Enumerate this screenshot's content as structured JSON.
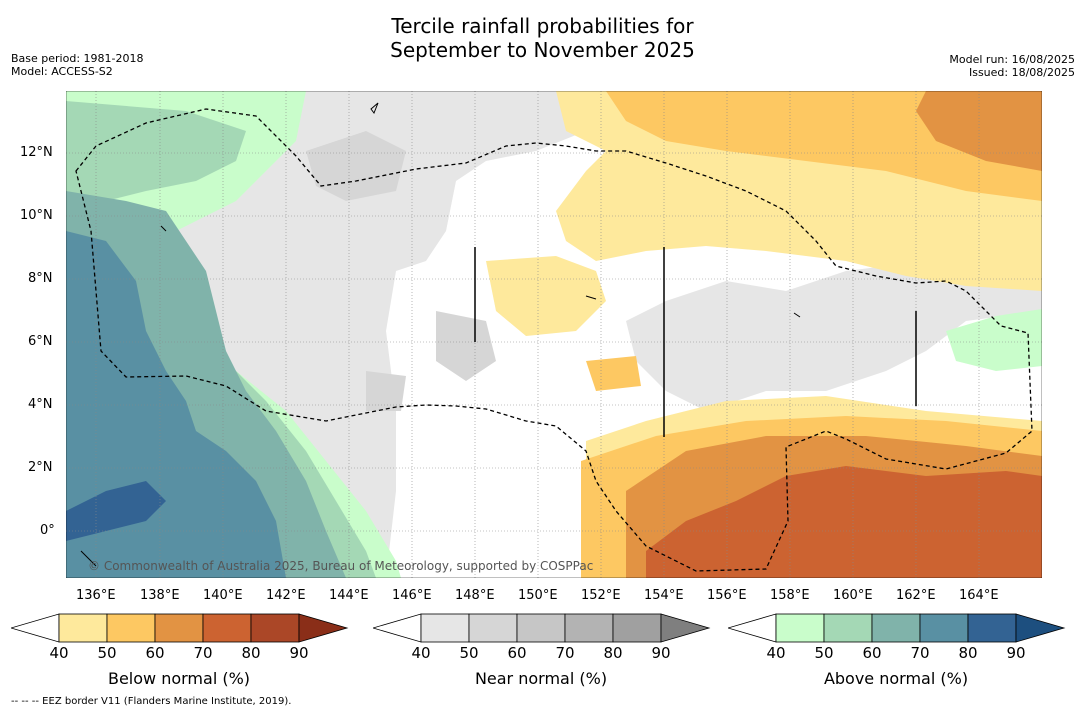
{
  "title_line1": "Tercile rainfall probabilities for",
  "title_line2": "September to November 2025",
  "base_period": "Base period: 1981-2018",
  "model": "Model: ACCESS-S2",
  "model_run": "Model run: 16/08/2025",
  "issued": "Issued: 18/08/2025",
  "credit": "© Commonwealth of Australia 2025, Bureau of Meteorology, supported by COSPPac",
  "footer": "-- -- -- EEZ border V11 (Flanders Marine Institute, 2019).",
  "lat_labels": [
    "12°N",
    "10°N",
    "8°N",
    "6°N",
    "4°N",
    "2°N",
    "0°"
  ],
  "lon_labels": [
    "136°E",
    "138°E",
    "140°E",
    "142°E",
    "144°E",
    "146°E",
    "148°E",
    "150°E",
    "152°E",
    "154°E",
    "156°E",
    "158°E",
    "160°E",
    "162°E",
    "164°E"
  ],
  "colorbars": [
    {
      "label": "Below normal (%)",
      "ticks": [
        "40",
        "50",
        "60",
        "70",
        "80",
        "90"
      ],
      "colors": [
        "#ffffff",
        "#fee99c",
        "#fdc862",
        "#e29343",
        "#cc6331",
        "#ab4727",
        "#8a2e18"
      ]
    },
    {
      "label": "Near normal (%)",
      "ticks": [
        "40",
        "50",
        "60",
        "70",
        "80",
        "90"
      ],
      "colors": [
        "#ffffff",
        "#e6e6e6",
        "#d6d6d6",
        "#c6c6c6",
        "#b3b3b3",
        "#a0a0a0",
        "#7f7f7f"
      ]
    },
    {
      "label": "Above normal (%)",
      "ticks": [
        "40",
        "50",
        "60",
        "70",
        "80",
        "90"
      ],
      "colors": [
        "#ffffff",
        "#c9fdcb",
        "#a4d8b5",
        "#80b3aa",
        "#5990a3",
        "#336393",
        "#1d4f7f"
      ]
    }
  ]
}
